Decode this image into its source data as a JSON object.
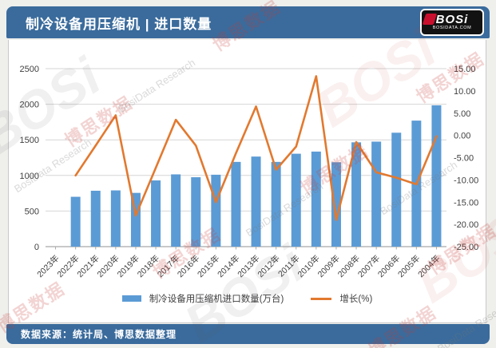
{
  "header": {
    "title": "制冷设备用压缩机 | 进口数量",
    "logo": {
      "brand": "BOSi",
      "domain": "BOSIDATA.COM"
    }
  },
  "footer": {
    "source": "数据来源：统计局、博思数据整理"
  },
  "watermark": {
    "red_text": "博思数据",
    "gray_text": "BosiData Research",
    "ghost_text": "BOSi"
  },
  "colors": {
    "banner_bg": "#3a6b9c",
    "bar": "#5b9bd5",
    "line": "#e2792f",
    "grid": "#d6d6d6",
    "axis_line": "#a9a9a9",
    "tick_text": "#3f3f3f",
    "card_bg": "#ffffff"
  },
  "chart_data": {
    "type": "bar+line",
    "title": "制冷设备用压缩机 | 进口数量",
    "categories": [
      "2023年",
      "2022年",
      "2021年",
      "2020年",
      "2019年",
      "2018年",
      "2017年",
      "2016年",
      "2015年",
      "2014年",
      "2013年",
      "2012年",
      "2011年",
      "2010年",
      "2009年",
      "2008年",
      "2007年",
      "2006年",
      "2005年",
      "2004年"
    ],
    "series": [
      {
        "name": "制冷设备用压缩机进口数量(万台)",
        "type": "bar",
        "axis": "left",
        "values": [
          null,
          700,
          785,
          790,
          755,
          930,
          1015,
          975,
          1010,
          1190,
          1265,
          1190,
          1305,
          1335,
          1185,
          1465,
          1475,
          1600,
          1770,
          1985
        ]
      },
      {
        "name": "增长(%)",
        "type": "line",
        "axis": "right",
        "values": [
          null,
          -9,
          -2.3,
          4.5,
          -18,
          -7.3,
          3.5,
          -2.3,
          -15,
          -4,
          6.5,
          -7.7,
          -2.5,
          13.3,
          -19,
          -1.5,
          -8.3,
          -9.5,
          -11,
          -0.2
        ]
      }
    ],
    "left_axis": {
      "min": 0,
      "max": 2500,
      "step": 500,
      "ticks": [
        {
          "v": 0,
          "label": "0"
        },
        {
          "v": 500,
          "label": "500"
        },
        {
          "v": 1000,
          "label": "1000"
        },
        {
          "v": 1500,
          "label": "1500"
        },
        {
          "v": 2000,
          "label": "2000"
        },
        {
          "v": 2500,
          "label": "2500"
        }
      ]
    },
    "right_axis": {
      "min": -25,
      "max": 15,
      "step": 5,
      "ticks": [
        {
          "v": 15,
          "label": "15.00"
        },
        {
          "v": 10,
          "label": "10.00"
        },
        {
          "v": 5,
          "label": "5.00"
        },
        {
          "v": 0,
          "label": "0.00"
        },
        {
          "v": -5,
          "label": "-5.00"
        },
        {
          "v": -10,
          "label": "-10.00"
        },
        {
          "v": -15,
          "label": "-15.00"
        },
        {
          "v": -20,
          "label": "-20.00"
        },
        {
          "v": -25,
          "label": "-25.00"
        }
      ]
    },
    "grid": true,
    "legend_position": "bottom"
  }
}
